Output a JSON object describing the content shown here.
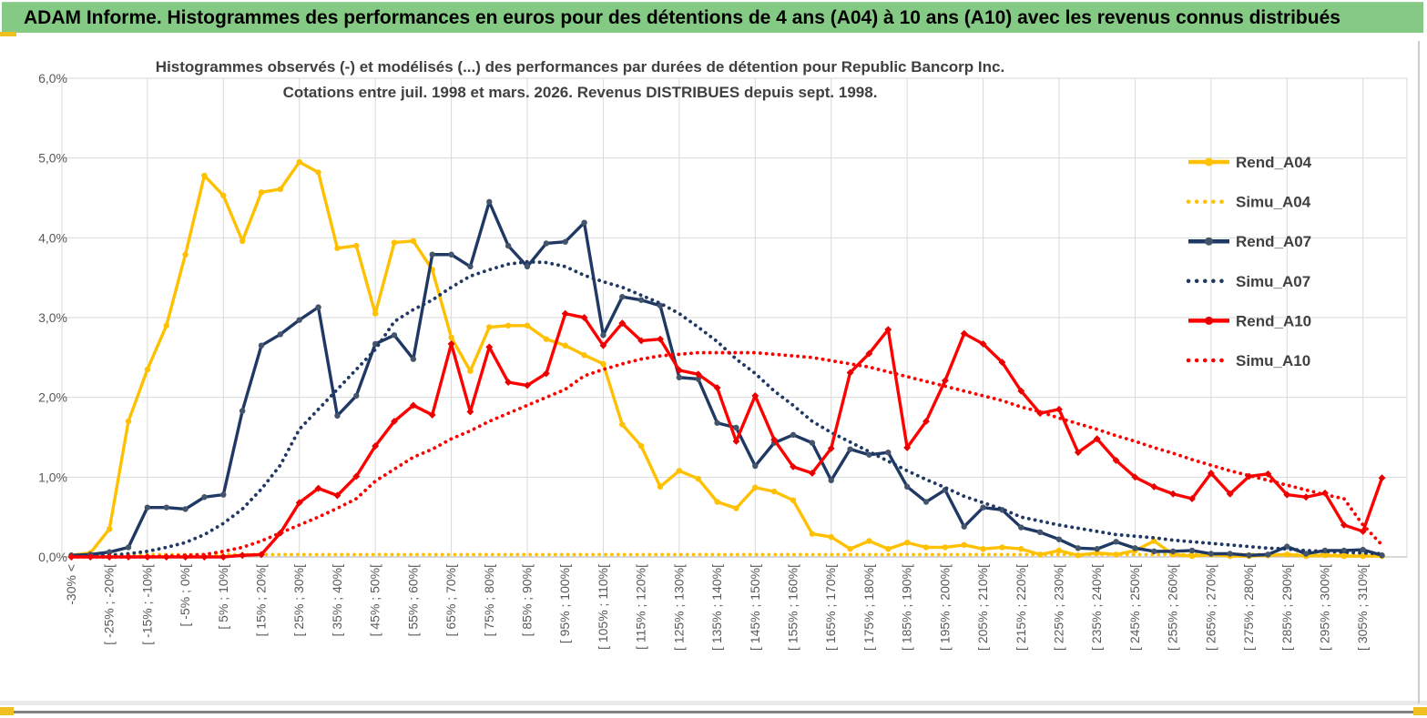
{
  "window": {
    "title": "ADAM Informe. Histogrammes des performances en euros pour des détentions de 4 ans (A04) à 10 ans (A10) avec les revenus connus distribués"
  },
  "colors": {
    "header_bg": "#84C984",
    "accent_gold": "#F0C020",
    "grid": "#D9D9D9",
    "axis": "#BFBFBF",
    "tick_text": "#595959",
    "title_text": "#404040",
    "gold_series": "#FFC000",
    "navy_series": "#1F3864",
    "red_series": "#FF0000"
  },
  "chart_data": {
    "type": "line",
    "title_line1": "Histogrammes observés (-) et modélisés (...) des performances par durées de détention pour Republic Bancorp Inc.",
    "title_line2": "Cotations entre juil. 1998 et mars. 2026.  Revenus DISTRIBUES depuis sept. 1998.",
    "xlabel": "",
    "ylabel": "",
    "ylim": [
      0,
      6
    ],
    "grid": "on",
    "legend_position": "right",
    "ytick_labels": [
      "0,0%",
      "1,0%",
      "2,0%",
      "3,0%",
      "4,0%",
      "5,0%",
      "6,0%"
    ],
    "x_note": "5%-wide performance bins; axis labels shown every other bin",
    "categories": [
      "-30% <",
      "",
      "[ -25% ; -20%[",
      "",
      "[ -15% ; -10%[",
      "",
      "[ -5% ; 0%[",
      "",
      "[ 5% ; 10%[",
      "",
      "[ 15% ; 20%[",
      "",
      "[ 25% ; 30%[",
      "",
      "[ 35% ; 40%[",
      "",
      "[ 45% ; 50%[",
      "",
      "[ 55% ; 60%[",
      "",
      "[ 65% ; 70%[",
      "",
      "[ 75% ; 80%[",
      "",
      "[ 85% ; 90%[",
      "",
      "[ 95% ; 100%[",
      "",
      "[ 105% ; 110%[",
      "",
      "[ 115% ; 120%[",
      "",
      "[ 125% ; 130%[",
      "",
      "[ 135% ; 140%[",
      "",
      "[ 145% ; 150%[",
      "",
      "[ 155% ; 160%[",
      "",
      "[ 165% ; 170%[",
      "",
      "[ 175% ; 180%[",
      "",
      "[ 185% ; 190%[",
      "",
      "[ 195% ; 200%[",
      "",
      "[ 205% ; 210%[",
      "",
      "[ 215% ; 220%[",
      "",
      "[ 225% ; 230%[",
      "",
      "[ 235% ; 240%[",
      "",
      "[ 245% ; 250%[",
      "",
      "[ 255% ; 260%[",
      "",
      "[ 265% ; 270%[",
      "",
      "[ 275% ; 280%[",
      "",
      "[ 285% ; 290%[",
      "",
      "[ 295% ; 300%[",
      "",
      "[ 305% ; 310%[",
      ""
    ],
    "series": [
      {
        "name": "Rend_A04",
        "style": "solid",
        "marker": "circle",
        "color": "#FFC000",
        "marker_color": "#FFC000",
        "values": [
          0.02,
          0.05,
          0.35,
          1.7,
          2.35,
          2.9,
          3.79,
          4.78,
          4.53,
          3.96,
          4.57,
          4.61,
          4.95,
          4.82,
          3.87,
          3.9,
          3.05,
          3.94,
          3.96,
          3.6,
          2.75,
          2.33,
          2.88,
          2.9,
          2.9,
          2.73,
          2.65,
          2.53,
          2.42,
          1.66,
          1.39,
          0.88,
          1.08,
          0.98,
          0.69,
          0.61,
          0.87,
          0.82,
          0.71,
          0.29,
          0.25,
          0.1,
          0.2,
          0.1,
          0.18,
          0.12,
          0.12,
          0.15,
          0.1,
          0.12,
          0.1,
          0.03,
          0.08,
          0.02,
          0.05,
          0.03,
          0.08,
          0.2,
          0.03,
          0.01,
          0.03,
          0.01,
          0.01,
          0.02,
          0.03,
          0.01,
          0.02,
          0.01,
          0.01,
          0.01
        ]
      },
      {
        "name": "Simu_A04",
        "style": "dotted",
        "marker": "none",
        "color": "#FFC000",
        "marker_color": "#FFC000",
        "values": [
          0.03,
          0.03,
          0.03,
          0.03,
          0.03,
          0.03,
          0.03,
          0.03,
          0.03,
          0.03,
          0.03,
          0.03,
          0.03,
          0.03,
          0.03,
          0.03,
          0.03,
          0.03,
          0.03,
          0.03,
          0.03,
          0.03,
          0.03,
          0.03,
          0.03,
          0.03,
          0.03,
          0.03,
          0.03,
          0.03,
          0.03,
          0.03,
          0.03,
          0.03,
          0.03,
          0.03,
          0.03,
          0.03,
          0.03,
          0.03,
          0.03,
          0.03,
          0.03,
          0.03,
          0.03,
          0.03,
          0.03,
          0.03,
          0.03,
          0.03,
          0.03,
          0.03,
          0.03,
          0.03,
          0.03,
          0.03,
          0.03,
          0.03,
          0.03,
          0.03,
          0.03,
          0.03,
          0.03,
          0.03,
          0.03,
          0.03,
          0.03,
          0.03,
          0.03,
          0.03
        ]
      },
      {
        "name": "Rend_A07",
        "style": "solid",
        "marker": "circle",
        "color": "#1F3864",
        "marker_color": "#44546A",
        "values": [
          0.02,
          0.03,
          0.06,
          0.12,
          0.62,
          0.62,
          0.6,
          0.75,
          0.78,
          1.83,
          2.65,
          2.79,
          2.97,
          3.13,
          1.77,
          2.02,
          2.67,
          2.78,
          2.48,
          3.79,
          3.79,
          3.64,
          4.45,
          3.9,
          3.64,
          3.93,
          3.95,
          4.19,
          2.78,
          3.26,
          3.22,
          3.15,
          2.25,
          2.23,
          1.68,
          1.62,
          1.14,
          1.43,
          1.53,
          1.43,
          0.96,
          1.35,
          1.28,
          1.31,
          0.88,
          0.69,
          0.84,
          0.38,
          0.62,
          0.59,
          0.37,
          0.31,
          0.22,
          0.11,
          0.1,
          0.19,
          0.11,
          0.07,
          0.07,
          0.08,
          0.04,
          0.04,
          0.02,
          0.03,
          0.13,
          0.04,
          0.08,
          0.08,
          0.09,
          0.02
        ]
      },
      {
        "name": "Simu_A07",
        "style": "dotted",
        "marker": "none",
        "color": "#1F3864",
        "marker_color": "#1F3864",
        "values": [
          0.0,
          0.01,
          0.02,
          0.04,
          0.07,
          0.12,
          0.18,
          0.28,
          0.42,
          0.6,
          0.85,
          1.15,
          1.6,
          1.85,
          2.1,
          2.35,
          2.6,
          2.95,
          3.1,
          3.22,
          3.38,
          3.52,
          3.6,
          3.67,
          3.7,
          3.69,
          3.64,
          3.53,
          3.45,
          3.38,
          3.28,
          3.18,
          3.05,
          2.88,
          2.7,
          2.48,
          2.3,
          2.08,
          1.9,
          1.7,
          1.56,
          1.44,
          1.32,
          1.2,
          1.08,
          0.97,
          0.87,
          0.76,
          0.68,
          0.6,
          0.5,
          0.45,
          0.4,
          0.36,
          0.32,
          0.28,
          0.26,
          0.24,
          0.21,
          0.19,
          0.17,
          0.15,
          0.13,
          0.11,
          0.1,
          0.08,
          0.07,
          0.06,
          0.05,
          0.04
        ]
      },
      {
        "name": "Rend_A10",
        "style": "solid",
        "marker": "diamond",
        "color": "#FF0000",
        "marker_color": "#E80000",
        "values": [
          0.0,
          0.0,
          0.0,
          0.0,
          0.0,
          0.0,
          0.0,
          0.0,
          0.0,
          0.02,
          0.03,
          0.3,
          0.68,
          0.86,
          0.77,
          1.01,
          1.39,
          1.7,
          1.9,
          1.78,
          2.67,
          1.82,
          2.63,
          2.19,
          2.15,
          2.3,
          3.05,
          3.0,
          2.65,
          2.93,
          2.71,
          2.73,
          2.34,
          2.29,
          2.12,
          1.45,
          2.02,
          1.47,
          1.13,
          1.05,
          1.36,
          2.31,
          2.55,
          2.85,
          1.37,
          1.7,
          2.21,
          2.8,
          2.67,
          2.44,
          2.08,
          1.8,
          1.85,
          1.31,
          1.48,
          1.21,
          1.0,
          0.88,
          0.79,
          0.73,
          1.05,
          0.79,
          1.01,
          1.04,
          0.78,
          0.75,
          0.8,
          0.4,
          0.32,
          0.99
        ]
      },
      {
        "name": "Simu_A10",
        "style": "dotted",
        "marker": "none",
        "color": "#FF0000",
        "marker_color": "#FF0000",
        "values": [
          0.0,
          0.0,
          0.0,
          0.0,
          0.0,
          0.01,
          0.02,
          0.03,
          0.07,
          0.12,
          0.2,
          0.3,
          0.4,
          0.5,
          0.61,
          0.73,
          0.95,
          1.1,
          1.25,
          1.35,
          1.48,
          1.58,
          1.7,
          1.8,
          1.9,
          2.0,
          2.1,
          2.27,
          2.35,
          2.42,
          2.48,
          2.52,
          2.54,
          2.56,
          2.56,
          2.56,
          2.56,
          2.54,
          2.52,
          2.5,
          2.46,
          2.42,
          2.38,
          2.32,
          2.26,
          2.2,
          2.14,
          2.08,
          2.02,
          1.96,
          1.88,
          1.82,
          1.74,
          1.67,
          1.6,
          1.52,
          1.45,
          1.37,
          1.3,
          1.22,
          1.15,
          1.08,
          1.02,
          0.96,
          0.9,
          0.84,
          0.78,
          0.73,
          0.4,
          0.15
        ]
      }
    ]
  }
}
